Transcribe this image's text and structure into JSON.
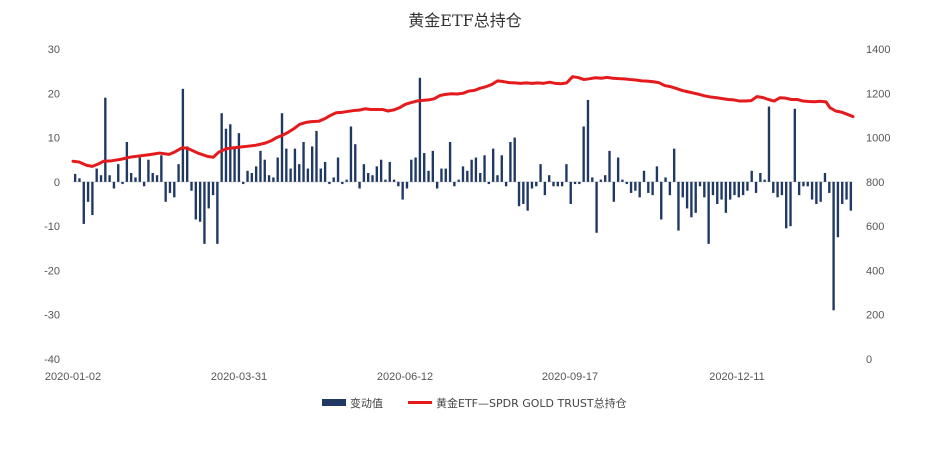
{
  "chart_data": {
    "type": "bar+line",
    "title": "黄金ETF总持仓",
    "x_tick_labels": [
      "2020-01-02",
      "2020-03-31",
      "2020-06-12",
      "2020-09-17",
      "2020-12-11"
    ],
    "left_axis": {
      "min": -40,
      "max": 30,
      "ticks": [
        30,
        20,
        10,
        0,
        -10,
        -20,
        -30,
        -40
      ]
    },
    "right_axis": {
      "min": 0,
      "max": 1400,
      "ticks": [
        1400,
        1200,
        1000,
        800,
        600,
        400,
        200,
        0
      ]
    },
    "grid": false,
    "legend_position": "bottom",
    "colors": {
      "bar": "#1f3864",
      "line": "#e41a1c"
    },
    "series": [
      {
        "name": "变动值",
        "type": "bar",
        "axis": "left",
        "values": [
          1.8,
          0.8,
          -9.5,
          -4.5,
          -7.5,
          3.0,
          1.5,
          19.0,
          1.5,
          -1.5,
          4.0,
          -0.5,
          9.0,
          2.0,
          1.0,
          5.5,
          -1.0,
          5.0,
          2.0,
          1.5,
          6.0,
          -4.5,
          -2.5,
          -3.5,
          4.0,
          21.0,
          8.0,
          -2.0,
          -8.5,
          -9.0,
          -14.0,
          -6.0,
          -3.0,
          -14.0,
          15.5,
          12.0,
          13.0,
          8.0,
          11.0,
          -0.5,
          2.5,
          2.0,
          3.5,
          7.0,
          5.0,
          1.5,
          1.0,
          5.5,
          15.5,
          7.5,
          3.0,
          7.5,
          4.0,
          9.0,
          3.0,
          8.0,
          11.5,
          3.0,
          4.5,
          -0.5,
          1.0,
          5.5,
          -0.5,
          0.5,
          12.5,
          8.5,
          -1.5,
          4.0,
          2.0,
          1.5,
          3.5,
          5.0,
          0.5,
          4.5,
          0.5,
          -1.0,
          -4.0,
          -1.5,
          5.0,
          5.5,
          23.5,
          6.5,
          2.5,
          7.0,
          -1.5,
          3.0,
          3.0,
          9.0,
          -1.0,
          0.5,
          3.5,
          2.5,
          5.0,
          5.5,
          2.0,
          6.0,
          -0.5,
          7.5,
          1.5,
          6.0,
          -1.0,
          9.0,
          10.0,
          -5.5,
          -5.0,
          -6.5,
          -1.5,
          -1.0,
          4.0,
          -3.0,
          1.5,
          -1.0,
          -1.0,
          -1.0,
          4.0,
          -5.0,
          -0.5,
          -0.5,
          12.5,
          18.5,
          1.0,
          -11.5,
          0.5,
          1.5,
          7.0,
          -4.5,
          5.5,
          0.5,
          -0.5,
          -2.5,
          -2.0,
          -3.5,
          2.5,
          -2.5,
          -3.0,
          3.5,
          -8.5,
          1.0,
          -3.0,
          7.5,
          -11.0,
          -3.5,
          -6.0,
          -8.0,
          -7.0,
          -1.0,
          -3.5,
          -14.0,
          -3.0,
          -5.0,
          -4.0,
          -7.0,
          -4.0,
          -3.0,
          -3.5,
          -3.0,
          -2.0,
          2.5,
          -2.5,
          2.0,
          0.5,
          17.0,
          -2.5,
          -3.5,
          -3.0,
          -10.5,
          -10.0,
          16.5,
          -3.0,
          -1.0,
          -1.0,
          -4.0,
          -5.0,
          -4.5,
          2.0,
          -2.5,
          -29.0,
          -12.5,
          -5.0,
          -4.0,
          -6.5
        ]
      },
      {
        "name": "黄金ETF—SPDR GOLD TRUST总持仓",
        "type": "line",
        "axis": "right",
        "points": [
          [
            0,
            893
          ],
          [
            3,
            890
          ],
          [
            7,
            875
          ],
          [
            10,
            870
          ],
          [
            13,
            880
          ],
          [
            16,
            893
          ],
          [
            20,
            895
          ],
          [
            25,
            902
          ],
          [
            30,
            912
          ],
          [
            40,
            923
          ],
          [
            45,
            930
          ],
          [
            50,
            924
          ],
          [
            53,
            935
          ],
          [
            57,
            955
          ],
          [
            60,
            950
          ],
          [
            65,
            930
          ],
          [
            70,
            915
          ],
          [
            73,
            911
          ],
          [
            76,
            935
          ],
          [
            80,
            950
          ],
          [
            85,
            955
          ],
          [
            90,
            960
          ],
          [
            95,
            965
          ],
          [
            100,
            975
          ],
          [
            103,
            985
          ],
          [
            106,
            1000
          ],
          [
            109,
            1010
          ],
          [
            112,
            1024
          ],
          [
            115,
            1040
          ],
          [
            118,
            1060
          ],
          [
            121,
            1068
          ],
          [
            124,
            1072
          ],
          [
            128,
            1074
          ],
          [
            131,
            1085
          ],
          [
            134,
            1100
          ],
          [
            137,
            1112
          ],
          [
            140,
            1114
          ],
          [
            143,
            1118
          ],
          [
            146,
            1122
          ],
          [
            149,
            1124
          ],
          [
            152,
            1130
          ],
          [
            155,
            1127
          ],
          [
            158,
            1127
          ],
          [
            161,
            1127
          ],
          [
            164,
            1120
          ],
          [
            167,
            1125
          ],
          [
            170,
            1135
          ],
          [
            173,
            1150
          ],
          [
            176,
            1158
          ],
          [
            179,
            1165
          ],
          [
            182,
            1168
          ],
          [
            185,
            1170
          ],
          [
            188,
            1175
          ],
          [
            191,
            1190
          ],
          [
            194,
            1195
          ],
          [
            197,
            1198
          ],
          [
            200,
            1197
          ],
          [
            203,
            1200
          ],
          [
            206,
            1210
          ],
          [
            209,
            1213
          ],
          [
            212,
            1223
          ],
          [
            215,
            1230
          ],
          [
            218,
            1240
          ],
          [
            221,
            1256
          ],
          [
            224,
            1253
          ],
          [
            227,
            1248
          ],
          [
            230,
            1247
          ],
          [
            233,
            1245
          ],
          [
            236,
            1247
          ],
          [
            239,
            1245
          ],
          [
            242,
            1247
          ],
          [
            245,
            1245
          ],
          [
            248,
            1250
          ],
          [
            251,
            1245
          ],
          [
            254,
            1243
          ],
          [
            257,
            1247
          ],
          [
            260,
            1275
          ],
          [
            263,
            1271
          ],
          [
            266,
            1262
          ],
          [
            269,
            1266
          ],
          [
            272,
            1270
          ],
          [
            275,
            1268
          ],
          [
            278,
            1272
          ],
          [
            281,
            1268
          ],
          [
            284,
            1266
          ],
          [
            287,
            1265
          ],
          [
            290,
            1262
          ],
          [
            293,
            1260
          ],
          [
            296,
            1256
          ],
          [
            299,
            1255
          ],
          [
            302,
            1252
          ],
          [
            305,
            1248
          ],
          [
            308,
            1235
          ],
          [
            311,
            1230
          ],
          [
            314,
            1222
          ],
          [
            317,
            1213
          ],
          [
            320,
            1207
          ],
          [
            323,
            1201
          ],
          [
            326,
            1195
          ],
          [
            329,
            1188
          ],
          [
            332,
            1183
          ],
          [
            335,
            1180
          ],
          [
            338,
            1176
          ],
          [
            341,
            1172
          ],
          [
            344,
            1170
          ],
          [
            347,
            1165
          ],
          [
            350,
            1165
          ],
          [
            353,
            1167
          ],
          [
            356,
            1185
          ],
          [
            359,
            1181
          ],
          [
            362,
            1172
          ],
          [
            365,
            1165
          ],
          [
            368,
            1180
          ],
          [
            371,
            1178
          ],
          [
            374,
            1172
          ],
          [
            377,
            1172
          ],
          [
            380,
            1165
          ],
          [
            383,
            1163
          ],
          [
            386,
            1162
          ],
          [
            389,
            1164
          ],
          [
            392,
            1161
          ],
          [
            394,
            1135
          ],
          [
            397,
            1120
          ],
          [
            400,
            1115
          ],
          [
            403,
            1105
          ],
          [
            406,
            1095
          ]
        ],
        "x_max": 406
      }
    ]
  }
}
